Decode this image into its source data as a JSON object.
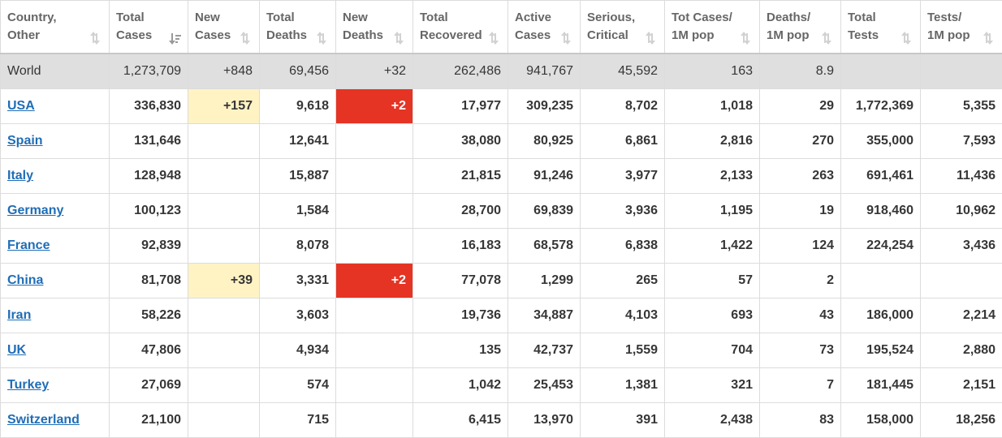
{
  "table": {
    "headers": [
      {
        "line1": "Country,",
        "line2": "Other"
      },
      {
        "line1": "Total",
        "line2": "Cases",
        "sorted": true
      },
      {
        "line1": "New",
        "line2": "Cases"
      },
      {
        "line1": "Total",
        "line2": "Deaths"
      },
      {
        "line1": "New",
        "line2": "Deaths"
      },
      {
        "line1": "Total",
        "line2": "Recovered"
      },
      {
        "line1": "Active",
        "line2": "Cases"
      },
      {
        "line1": "Serious,",
        "line2": "Critical"
      },
      {
        "line1": "Tot Cases/",
        "line2": "1M pop"
      },
      {
        "line1": "Deaths/",
        "line2": "1M pop"
      },
      {
        "line1": "Total",
        "line2": "Tests"
      },
      {
        "line1": "Tests/",
        "line2": "1M pop"
      }
    ],
    "world": {
      "country": "World",
      "total_cases": "1,273,709",
      "new_cases": "+848",
      "total_deaths": "69,456",
      "new_deaths": "+32",
      "total_recovered": "262,486",
      "active_cases": "941,767",
      "serious_critical": "45,592",
      "cases_per_1m": "163",
      "deaths_per_1m": "8.9",
      "total_tests": "",
      "tests_per_1m": ""
    },
    "rows": [
      {
        "country": "USA",
        "total_cases": "336,830",
        "new_cases": "+157",
        "total_deaths": "9,618",
        "new_deaths": "+2",
        "total_recovered": "17,977",
        "active_cases": "309,235",
        "serious_critical": "8,702",
        "cases_per_1m": "1,018",
        "deaths_per_1m": "29",
        "total_tests": "1,772,369",
        "tests_per_1m": "5,355"
      },
      {
        "country": "Spain",
        "total_cases": "131,646",
        "new_cases": "",
        "total_deaths": "12,641",
        "new_deaths": "",
        "total_recovered": "38,080",
        "active_cases": "80,925",
        "serious_critical": "6,861",
        "cases_per_1m": "2,816",
        "deaths_per_1m": "270",
        "total_tests": "355,000",
        "tests_per_1m": "7,593"
      },
      {
        "country": "Italy",
        "total_cases": "128,948",
        "new_cases": "",
        "total_deaths": "15,887",
        "new_deaths": "",
        "total_recovered": "21,815",
        "active_cases": "91,246",
        "serious_critical": "3,977",
        "cases_per_1m": "2,133",
        "deaths_per_1m": "263",
        "total_tests": "691,461",
        "tests_per_1m": "11,436"
      },
      {
        "country": "Germany",
        "total_cases": "100,123",
        "new_cases": "",
        "total_deaths": "1,584",
        "new_deaths": "",
        "total_recovered": "28,700",
        "active_cases": "69,839",
        "serious_critical": "3,936",
        "cases_per_1m": "1,195",
        "deaths_per_1m": "19",
        "total_tests": "918,460",
        "tests_per_1m": "10,962"
      },
      {
        "country": "France",
        "total_cases": "92,839",
        "new_cases": "",
        "total_deaths": "8,078",
        "new_deaths": "",
        "total_recovered": "16,183",
        "active_cases": "68,578",
        "serious_critical": "6,838",
        "cases_per_1m": "1,422",
        "deaths_per_1m": "124",
        "total_tests": "224,254",
        "tests_per_1m": "3,436"
      },
      {
        "country": "China",
        "total_cases": "81,708",
        "new_cases": "+39",
        "total_deaths": "3,331",
        "new_deaths": "+2",
        "total_recovered": "77,078",
        "active_cases": "1,299",
        "serious_critical": "265",
        "cases_per_1m": "57",
        "deaths_per_1m": "2",
        "total_tests": "",
        "tests_per_1m": ""
      },
      {
        "country": "Iran",
        "total_cases": "58,226",
        "new_cases": "",
        "total_deaths": "3,603",
        "new_deaths": "",
        "total_recovered": "19,736",
        "active_cases": "34,887",
        "serious_critical": "4,103",
        "cases_per_1m": "693",
        "deaths_per_1m": "43",
        "total_tests": "186,000",
        "tests_per_1m": "2,214"
      },
      {
        "country": "UK",
        "total_cases": "47,806",
        "new_cases": "",
        "total_deaths": "4,934",
        "new_deaths": "",
        "total_recovered": "135",
        "active_cases": "42,737",
        "serious_critical": "1,559",
        "cases_per_1m": "704",
        "deaths_per_1m": "73",
        "total_tests": "195,524",
        "tests_per_1m": "2,880"
      },
      {
        "country": "Turkey",
        "total_cases": "27,069",
        "new_cases": "",
        "total_deaths": "574",
        "new_deaths": "",
        "total_recovered": "1,042",
        "active_cases": "25,453",
        "serious_critical": "1,381",
        "cases_per_1m": "321",
        "deaths_per_1m": "7",
        "total_tests": "181,445",
        "tests_per_1m": "2,151"
      },
      {
        "country": "Switzerland",
        "total_cases": "21,100",
        "new_cases": "",
        "total_deaths": "715",
        "new_deaths": "",
        "total_recovered": "6,415",
        "active_cases": "13,970",
        "serious_critical": "391",
        "cases_per_1m": "2,438",
        "deaths_per_1m": "83",
        "total_tests": "158,000",
        "tests_per_1m": "18,256"
      }
    ]
  },
  "colors": {
    "link": "#1f6db6",
    "world_row_bg": "#dfdfdf",
    "new_cases_bg": "#fff3c4",
    "new_deaths_bg": "#e53424",
    "new_deaths_text": "#ffffff",
    "sort_icon": "sort-arrows-icon"
  }
}
